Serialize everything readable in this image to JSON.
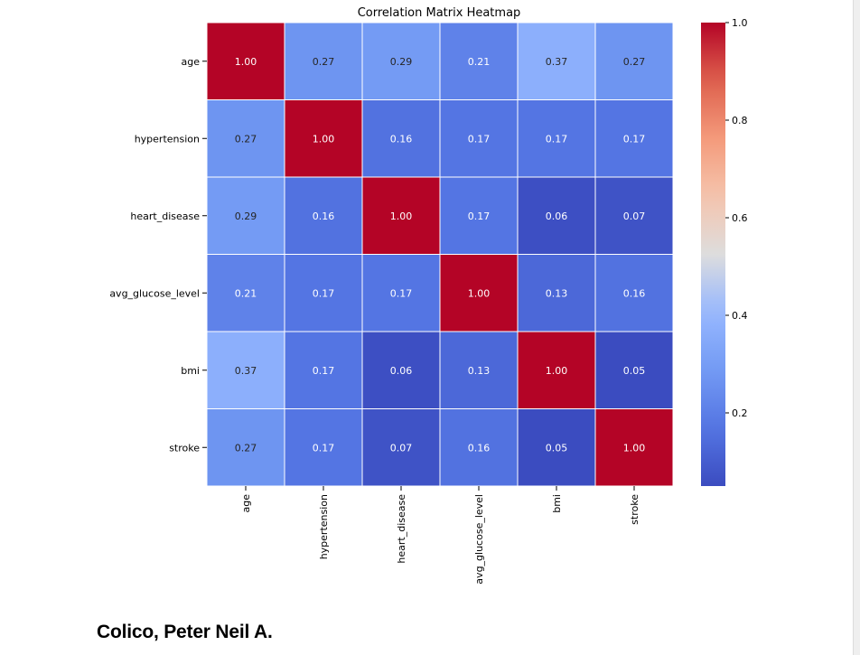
{
  "chart_data": {
    "type": "heatmap",
    "title": "Correlation Matrix Heatmap",
    "xlabel": "",
    "ylabel": "",
    "variables": [
      "age",
      "hypertension",
      "heart_disease",
      "avg_glucose_level",
      "bmi",
      "stroke"
    ],
    "matrix": [
      [
        1.0,
        0.27,
        0.29,
        0.21,
        0.37,
        0.27
      ],
      [
        0.27,
        1.0,
        0.16,
        0.17,
        0.17,
        0.17
      ],
      [
        0.29,
        0.16,
        1.0,
        0.17,
        0.06,
        0.07
      ],
      [
        0.21,
        0.17,
        0.17,
        1.0,
        0.13,
        0.16
      ],
      [
        0.37,
        0.17,
        0.06,
        0.13,
        1.0,
        0.05
      ],
      [
        0.27,
        0.17,
        0.07,
        0.16,
        0.05,
        1.0
      ]
    ],
    "value_format": "0.00",
    "colormap": "coolwarm",
    "colorbar": {
      "range": [
        0.05,
        1.0
      ],
      "ticks": [
        0.2,
        0.4,
        0.6,
        0.8,
        1.0
      ],
      "tick_labels": [
        "0.2",
        "0.4",
        "0.6",
        "0.8",
        "1.0"
      ]
    }
  },
  "author": "Colico, Peter Neil A."
}
